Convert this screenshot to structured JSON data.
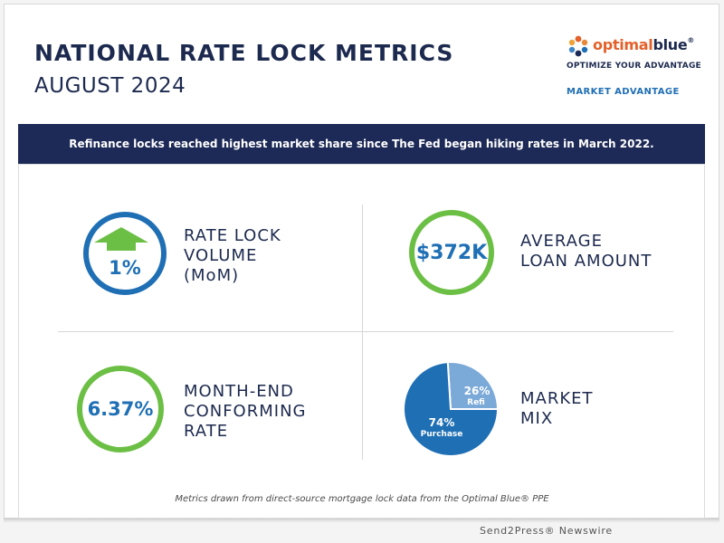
{
  "header": {
    "title": "NATIONAL RATE LOCK METRICS",
    "subtitle": "AUGUST 2024"
  },
  "brand": {
    "logo_prefix": "optimal",
    "logo_suffix": "blue",
    "logo_mark": "®",
    "tagline": "OPTIMIZE YOUR ADVANTAGE",
    "section_label": "MARKET ADVANTAGE"
  },
  "banner": {
    "text": "Refinance locks reached highest market share since The Fed began hiking rates in March 2022."
  },
  "metrics": {
    "rate_lock_volume": {
      "value": "1%",
      "label_lines": [
        "RATE LOCK",
        "VOLUME",
        "(MoM)"
      ],
      "icon": "up-arrow-icon"
    },
    "average_loan": {
      "value": "$372K",
      "label_lines": [
        "AVERAGE",
        "LOAN AMOUNT"
      ]
    },
    "conforming_rate": {
      "value": "6.37%",
      "label_lines": [
        "MONTH-END",
        "CONFORMING",
        "RATE"
      ]
    },
    "market_mix": {
      "label_lines": [
        "MARKET",
        "MIX"
      ]
    }
  },
  "chart_data": {
    "type": "pie",
    "title": "MARKET MIX",
    "slices": [
      {
        "name": "Purchase",
        "value": 74,
        "label": "74%",
        "color": "#1f6fb5"
      },
      {
        "name": "Refi",
        "value": 26,
        "label": "26%",
        "color": "#7ba9d8"
      }
    ]
  },
  "footnote": "Metrics drawn from direct-source mortgage lock data from the Optimal Blue® PPE",
  "credit": "Send2Press® Newswire",
  "colors": {
    "navy": "#1d2a57",
    "blue": "#1f6fb5",
    "green": "#6cbf45",
    "orange": "#e3612a"
  }
}
